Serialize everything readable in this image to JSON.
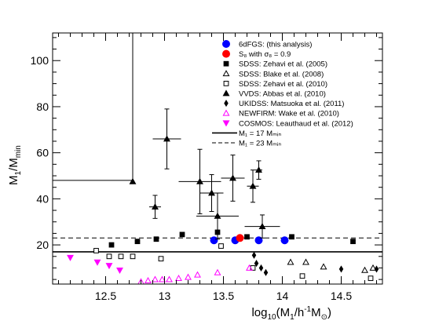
{
  "chart_data": {
    "type": "scatter",
    "xlabel": "log10(M1/h-1 M⊙)",
    "ylabel": "M1/Mmin",
    "xlim": [
      12.05,
      14.85
    ],
    "ylim": [
      3,
      112
    ],
    "x_ticks": [
      12.5,
      13,
      13.5,
      14,
      14.5
    ],
    "y_ticks": [
      20,
      40,
      60,
      80,
      100
    ],
    "legend_position": "top-right",
    "grid": false,
    "reference_lines": [
      {
        "type": "vertical",
        "x": 12.73,
        "y_from": 48,
        "y_to": 112,
        "color": "#000000"
      },
      {
        "type": "horizontal",
        "y": 48,
        "x_from": 12.05,
        "x_to": 12.73,
        "color": "#000000"
      },
      {
        "type": "horizontal",
        "y": 17,
        "style": "solid",
        "label": "M1 = 17 Mmin"
      },
      {
        "type": "horizontal",
        "y": 23,
        "style": "dashed",
        "label": "M1 = 23 Mmin"
      }
    ],
    "series": [
      {
        "name": "6dFGS: (this analysis)",
        "marker": "circle",
        "color": "#0000ff",
        "points": [
          {
            "x": 13.42,
            "y": 22
          },
          {
            "x": 13.6,
            "y": 22
          },
          {
            "x": 13.8,
            "y": 22
          },
          {
            "x": 14.02,
            "y": 22
          }
        ]
      },
      {
        "name": "S8 with σ8 = 0.9",
        "marker": "circle",
        "color": "#ff0000",
        "points": [
          {
            "x": 13.64,
            "y": 23
          }
        ]
      },
      {
        "name": "SDSS: Zehavi et al. (2005)",
        "marker": "square",
        "color": "#000000",
        "points": [
          {
            "x": 12.55,
            "y": 20
          },
          {
            "x": 12.77,
            "y": 21.5
          },
          {
            "x": 12.93,
            "y": 22.5
          },
          {
            "x": 13.15,
            "y": 24.5
          },
          {
            "x": 13.45,
            "y": 25.5
          },
          {
            "x": 13.7,
            "y": 23.5
          },
          {
            "x": 14.08,
            "y": 23.5
          },
          {
            "x": 14.6,
            "y": 21.5
          }
        ]
      },
      {
        "name": "SDSS: Blake et al. (2008)",
        "marker": "triangle-open",
        "color": "#000000",
        "points": [
          {
            "x": 14.07,
            "y": 12.5
          },
          {
            "x": 14.2,
            "y": 12.5
          },
          {
            "x": 14.35,
            "y": 10.5
          },
          {
            "x": 14.7,
            "y": 9
          },
          {
            "x": 14.77,
            "y": 10
          }
        ]
      },
      {
        "name": "SDSS: Zehavi et al. (2010)",
        "marker": "square-open",
        "color": "#000000",
        "points": [
          {
            "x": 12.42,
            "y": 17.5
          },
          {
            "x": 12.53,
            "y": 15
          },
          {
            "x": 12.63,
            "y": 15
          },
          {
            "x": 12.73,
            "y": 15
          },
          {
            "x": 12.97,
            "y": 14
          },
          {
            "x": 13.48,
            "y": 19.5
          },
          {
            "x": 13.75,
            "y": 10
          },
          {
            "x": 14.17,
            "y": 6.5
          },
          {
            "x": 14.75,
            "y": 5.5
          }
        ]
      },
      {
        "name": "VVDS: Abbas et al. (2010)",
        "marker": "triangle",
        "color": "#000000",
        "points": [
          {
            "x": 12.73,
            "y": 47.5
          },
          {
            "x": 12.92,
            "y": 36.5,
            "xerr": 0.05,
            "yerr": 5
          },
          {
            "x": 13.02,
            "y": 66,
            "xerr": 0.12,
            "yerr": 13
          },
          {
            "x": 13.3,
            "y": 47.5,
            "xerr": 0.18,
            "yerr": 14
          },
          {
            "x": 13.4,
            "y": 42.5,
            "xerr": 0.1,
            "yerr": 8
          },
          {
            "x": 13.45,
            "y": 32.5,
            "xerr": 0.18,
            "yerr": 10
          },
          {
            "x": 13.58,
            "y": 49,
            "xerr": 0.1,
            "yerr": 10
          },
          {
            "x": 13.75,
            "y": 45.5,
            "xerr": 0.05,
            "yerr": 7
          },
          {
            "x": 13.8,
            "y": 52.5,
            "xerr": 0.03,
            "yerr": 4
          },
          {
            "x": 13.83,
            "y": 28,
            "xerr": 0.15,
            "yerr": 5
          }
        ]
      },
      {
        "name": "UKIDSS: Matsuoka et al. (2011)",
        "marker": "diamond",
        "color": "#000000",
        "points": [
          {
            "x": 13.76,
            "y": 15.5
          },
          {
            "x": 13.78,
            "y": 12
          },
          {
            "x": 13.82,
            "y": 10
          },
          {
            "x": 13.86,
            "y": 8
          },
          {
            "x": 14.5,
            "y": 9.5
          },
          {
            "x": 14.8,
            "y": 9.5
          }
        ]
      },
      {
        "name": "NEWFIRM: Wake et al. (2010)",
        "marker": "triangle-open",
        "color": "#ff00ff",
        "points": [
          {
            "x": 12.8,
            "y": 4
          },
          {
            "x": 12.86,
            "y": 4.5
          },
          {
            "x": 12.92,
            "y": 5
          },
          {
            "x": 12.98,
            "y": 5
          },
          {
            "x": 13.04,
            "y": 5
          },
          {
            "x": 13.12,
            "y": 5.5
          },
          {
            "x": 13.2,
            "y": 6
          },
          {
            "x": 13.28,
            "y": 7
          },
          {
            "x": 13.45,
            "y": 8
          },
          {
            "x": 13.72,
            "y": 10
          }
        ]
      },
      {
        "name": "COSMOS: Leauthaud et al. (2012)",
        "marker": "triangle-down",
        "color": "#ff00ff",
        "points": [
          {
            "x": 12.2,
            "y": 14.5
          },
          {
            "x": 12.43,
            "y": 12.5
          },
          {
            "x": 12.53,
            "y": 11
          },
          {
            "x": 12.62,
            "y": 9
          }
        ]
      }
    ]
  },
  "legend": {
    "entries": [
      {
        "label": "6dFGS: (this analysis)",
        "marker": "circle",
        "color": "#0000ff"
      },
      {
        "label": "S₈ with σ₈ = 0.9",
        "marker": "circle",
        "color": "#ff0000"
      },
      {
        "label": "SDSS: Zehavi et al. (2005)",
        "marker": "square",
        "color": "#000000"
      },
      {
        "label": "SDSS: Blake et al. (2008)",
        "marker": "triangle-open",
        "color": "#000000"
      },
      {
        "label": "SDSS: Zehavi et al. (2010)",
        "marker": "square-open",
        "color": "#000000"
      },
      {
        "label": "VVDS: Abbas et al. (2010)",
        "marker": "triangle",
        "color": "#000000"
      },
      {
        "label": "UKIDSS: Matsuoka et al. (2011)",
        "marker": "diamond",
        "color": "#000000"
      },
      {
        "label": "NEWFIRM: Wake et al. (2010)",
        "marker": "triangle-open",
        "color": "#ff00ff"
      },
      {
        "label": "COSMOS: Leauthaud et al. (2012)",
        "marker": "triangle-down",
        "color": "#ff00ff"
      },
      {
        "label": "M₁ = 17 Mₘᵢₙ",
        "marker": "line-solid",
        "color": "#000000"
      },
      {
        "label": "M₁ = 23 Mₘᵢₙ",
        "marker": "line-dashed",
        "color": "#000000"
      }
    ]
  }
}
